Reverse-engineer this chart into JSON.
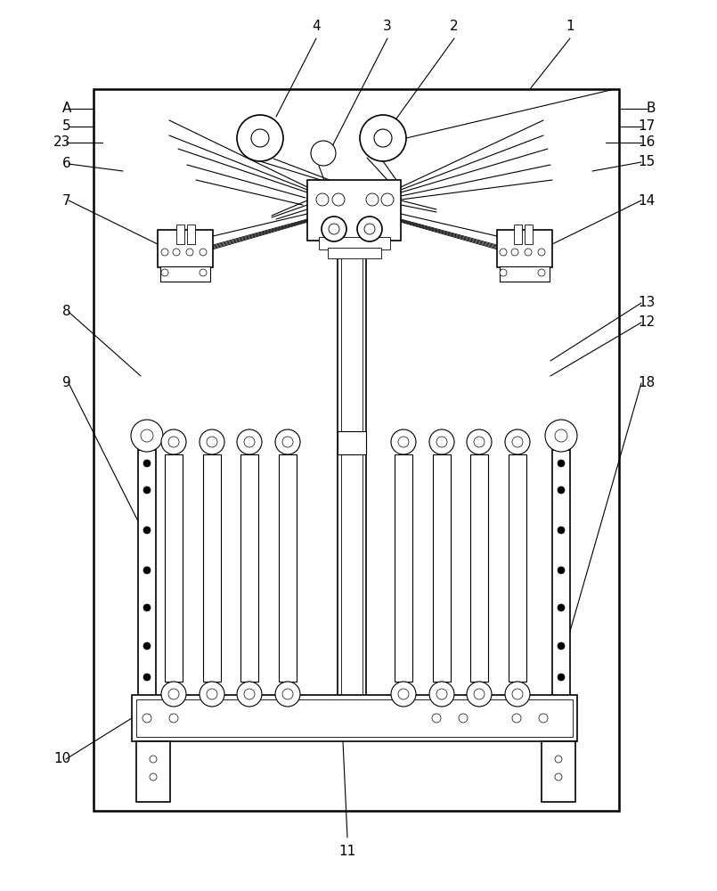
{
  "bg_color": "#ffffff",
  "line_color": "#000000",
  "fig_width": 8.05,
  "fig_height": 10.0,
  "dpi": 100
}
